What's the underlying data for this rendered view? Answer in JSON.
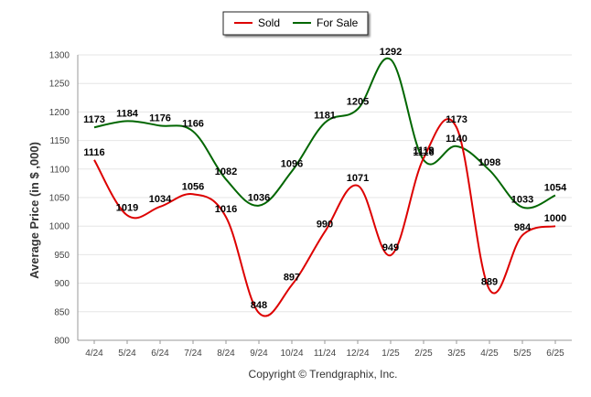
{
  "chart_data": {
    "type": "line",
    "categories": [
      "4/24",
      "5/24",
      "6/24",
      "7/24",
      "8/24",
      "9/24",
      "10/24",
      "11/24",
      "12/24",
      "1/25",
      "2/25",
      "3/25",
      "4/25",
      "5/25",
      "6/25"
    ],
    "series": [
      {
        "name": "Sold",
        "color": "#dd0000",
        "values": [
          1116,
          1019,
          1034,
          1056,
          1016,
          848,
          897,
          990,
          1071,
          949,
          1119,
          1173,
          889,
          984,
          1000
        ]
      },
      {
        "name": "For Sale",
        "color": "#006600",
        "values": [
          1173,
          1184,
          1176,
          1166,
          1082,
          1036,
          1096,
          1181,
          1205,
          1292,
          1116,
          1140,
          1098,
          1033,
          1054
        ]
      }
    ],
    "ylabel": "Average Price (in $ ,000)",
    "ylim": [
      800,
      1300
    ],
    "yticks": [
      800,
      850,
      900,
      950,
      1000,
      1050,
      1100,
      1150,
      1200,
      1250,
      1300
    ],
    "grid": true,
    "legend_position": "top-center",
    "footer": "Copyright © Trendgraphix, Inc."
  }
}
